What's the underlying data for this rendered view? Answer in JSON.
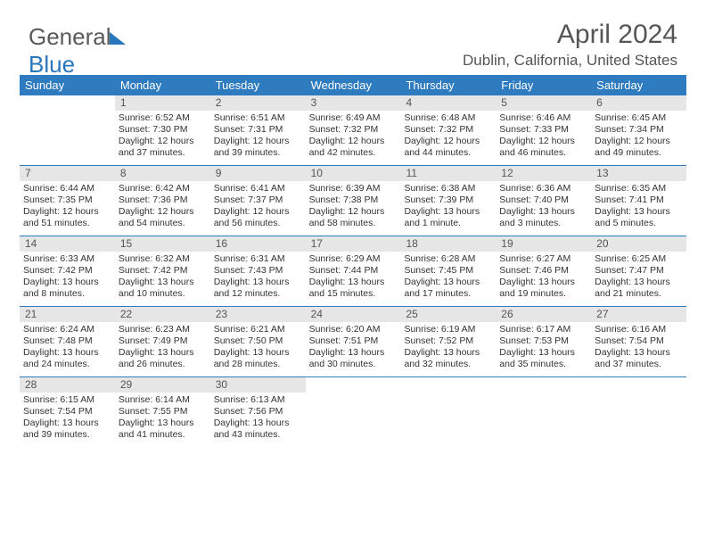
{
  "brand": {
    "part1": "General",
    "part2": "Blue"
  },
  "title": "April 2024",
  "location": "Dublin, California, United States",
  "colors": {
    "header_bg": "#2e7bc0",
    "header_text": "#ffffff",
    "daynum_bg": "#e6e6e6",
    "text": "#333333",
    "brand_gray": "#5a5a5a",
    "brand_blue": "#2876bb"
  },
  "dayNames": [
    "Sunday",
    "Monday",
    "Tuesday",
    "Wednesday",
    "Thursday",
    "Friday",
    "Saturday"
  ],
  "weeks": [
    [
      {
        "empty": true
      },
      {
        "d": "1",
        "sr": "6:52 AM",
        "ss": "7:30 PM",
        "dl": "12 hours and 37 minutes."
      },
      {
        "d": "2",
        "sr": "6:51 AM",
        "ss": "7:31 PM",
        "dl": "12 hours and 39 minutes."
      },
      {
        "d": "3",
        "sr": "6:49 AM",
        "ss": "7:32 PM",
        "dl": "12 hours and 42 minutes."
      },
      {
        "d": "4",
        "sr": "6:48 AM",
        "ss": "7:32 PM",
        "dl": "12 hours and 44 minutes."
      },
      {
        "d": "5",
        "sr": "6:46 AM",
        "ss": "7:33 PM",
        "dl": "12 hours and 46 minutes."
      },
      {
        "d": "6",
        "sr": "6:45 AM",
        "ss": "7:34 PM",
        "dl": "12 hours and 49 minutes."
      }
    ],
    [
      {
        "d": "7",
        "sr": "6:44 AM",
        "ss": "7:35 PM",
        "dl": "12 hours and 51 minutes."
      },
      {
        "d": "8",
        "sr": "6:42 AM",
        "ss": "7:36 PM",
        "dl": "12 hours and 54 minutes."
      },
      {
        "d": "9",
        "sr": "6:41 AM",
        "ss": "7:37 PM",
        "dl": "12 hours and 56 minutes."
      },
      {
        "d": "10",
        "sr": "6:39 AM",
        "ss": "7:38 PM",
        "dl": "12 hours and 58 minutes."
      },
      {
        "d": "11",
        "sr": "6:38 AM",
        "ss": "7:39 PM",
        "dl": "13 hours and 1 minute."
      },
      {
        "d": "12",
        "sr": "6:36 AM",
        "ss": "7:40 PM",
        "dl": "13 hours and 3 minutes."
      },
      {
        "d": "13",
        "sr": "6:35 AM",
        "ss": "7:41 PM",
        "dl": "13 hours and 5 minutes."
      }
    ],
    [
      {
        "d": "14",
        "sr": "6:33 AM",
        "ss": "7:42 PM",
        "dl": "13 hours and 8 minutes."
      },
      {
        "d": "15",
        "sr": "6:32 AM",
        "ss": "7:42 PM",
        "dl": "13 hours and 10 minutes."
      },
      {
        "d": "16",
        "sr": "6:31 AM",
        "ss": "7:43 PM",
        "dl": "13 hours and 12 minutes."
      },
      {
        "d": "17",
        "sr": "6:29 AM",
        "ss": "7:44 PM",
        "dl": "13 hours and 15 minutes."
      },
      {
        "d": "18",
        "sr": "6:28 AM",
        "ss": "7:45 PM",
        "dl": "13 hours and 17 minutes."
      },
      {
        "d": "19",
        "sr": "6:27 AM",
        "ss": "7:46 PM",
        "dl": "13 hours and 19 minutes."
      },
      {
        "d": "20",
        "sr": "6:25 AM",
        "ss": "7:47 PM",
        "dl": "13 hours and 21 minutes."
      }
    ],
    [
      {
        "d": "21",
        "sr": "6:24 AM",
        "ss": "7:48 PM",
        "dl": "13 hours and 24 minutes."
      },
      {
        "d": "22",
        "sr": "6:23 AM",
        "ss": "7:49 PM",
        "dl": "13 hours and 26 minutes."
      },
      {
        "d": "23",
        "sr": "6:21 AM",
        "ss": "7:50 PM",
        "dl": "13 hours and 28 minutes."
      },
      {
        "d": "24",
        "sr": "6:20 AM",
        "ss": "7:51 PM",
        "dl": "13 hours and 30 minutes."
      },
      {
        "d": "25",
        "sr": "6:19 AM",
        "ss": "7:52 PM",
        "dl": "13 hours and 32 minutes."
      },
      {
        "d": "26",
        "sr": "6:17 AM",
        "ss": "7:53 PM",
        "dl": "13 hours and 35 minutes."
      },
      {
        "d": "27",
        "sr": "6:16 AM",
        "ss": "7:54 PM",
        "dl": "13 hours and 37 minutes."
      }
    ],
    [
      {
        "d": "28",
        "sr": "6:15 AM",
        "ss": "7:54 PM",
        "dl": "13 hours and 39 minutes."
      },
      {
        "d": "29",
        "sr": "6:14 AM",
        "ss": "7:55 PM",
        "dl": "13 hours and 41 minutes."
      },
      {
        "d": "30",
        "sr": "6:13 AM",
        "ss": "7:56 PM",
        "dl": "13 hours and 43 minutes."
      },
      {
        "empty": true
      },
      {
        "empty": true
      },
      {
        "empty": true
      },
      {
        "empty": true
      }
    ]
  ],
  "labels": {
    "sunrise": "Sunrise: ",
    "sunset": "Sunset: ",
    "daylight": "Daylight: "
  }
}
